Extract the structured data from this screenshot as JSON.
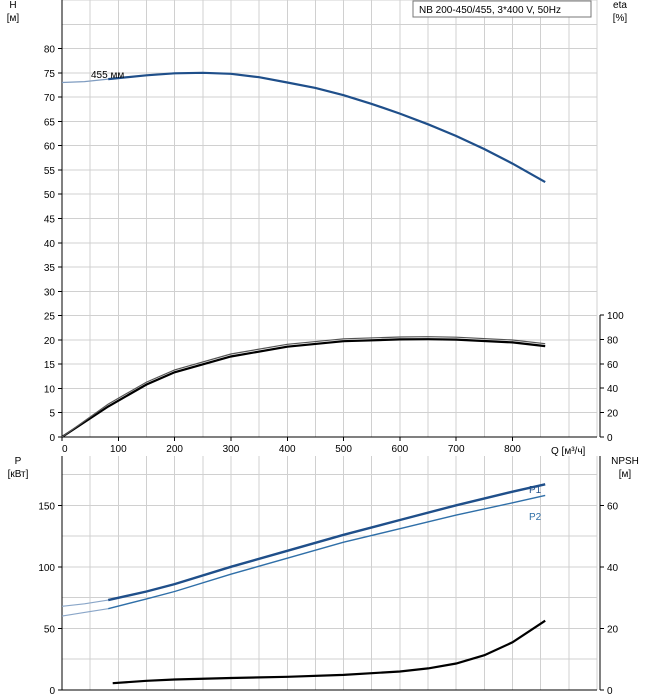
{
  "title_box": "NB 200-450/455, 3*400 V, 50Hz",
  "colors": {
    "head": "#1f4f8a",
    "p1": "#1f4f8a",
    "p2": "#2f6fa8",
    "eta": "#000000",
    "npsh": "#000000",
    "grid": "#d0d0d0"
  },
  "chart_data": [
    {
      "type": "line",
      "name": "head",
      "ylabel_line1": "H",
      "ylabel_line2": "[м]",
      "ylabel_right_line1": "eta",
      "ylabel_right_line2": "[%]",
      "xlabel": "Q [м³/ч]",
      "xlim": [
        0,
        950
      ],
      "ylim": [
        0,
        90
      ],
      "x_ticks": [
        0,
        100,
        200,
        300,
        400,
        500,
        600,
        700,
        800
      ],
      "y_ticks": [
        0,
        5,
        10,
        15,
        20,
        25,
        30,
        35,
        40,
        45,
        50,
        55,
        60,
        65,
        70,
        75,
        80
      ],
      "y2_lim": [
        0,
        100
      ],
      "y2_ticks": [
        0,
        20,
        40,
        60,
        80,
        100
      ],
      "annotation": "455 мм",
      "head_curve": {
        "x_ext": [
          0,
          40,
          82
        ],
        "y_ext": [
          73.0,
          73.2,
          73.7
        ],
        "x": [
          82,
          150,
          200,
          250,
          300,
          350,
          400,
          450,
          500,
          550,
          600,
          650,
          700,
          750,
          800,
          858
        ],
        "y": [
          73.7,
          74.5,
          74.9,
          75.0,
          74.8,
          74.1,
          73.0,
          71.9,
          70.4,
          68.6,
          66.6,
          64.4,
          62.0,
          59.3,
          56.3,
          52.5
        ]
      },
      "eta_curves": [
        {
          "x": [
            0,
            82,
            150,
            200,
            300,
            400,
            500,
            600,
            650,
            700,
            800,
            858
          ],
          "y": [
            0,
            25,
            43,
            53,
            66,
            74,
            78.5,
            80,
            80.2,
            79.8,
            77.5,
            74.5
          ]
        },
        {
          "x": [
            0,
            82,
            150,
            200,
            300,
            400,
            500,
            600,
            650,
            700,
            800,
            858
          ],
          "y": [
            0,
            27,
            45,
            55,
            68,
            76,
            80.5,
            82,
            82.2,
            81.8,
            79.5,
            76.5
          ]
        }
      ]
    },
    {
      "type": "line",
      "name": "power",
      "ylabel_line1": "P",
      "ylabel_line2": "[кВт]",
      "ylabel_right_line1": "NPSH",
      "ylabel_right_line2": "[м]",
      "xlim": [
        0,
        950
      ],
      "ylim": [
        0,
        190
      ],
      "y_ticks": [
        0,
        50,
        100,
        150
      ],
      "y2_lim": [
        0,
        76
      ],
      "y2_ticks": [
        0,
        20,
        40,
        60
      ],
      "series": [
        {
          "name": "P1",
          "x_ext": [
            0,
            40,
            82
          ],
          "y_ext": [
            68,
            70,
            73
          ],
          "x": [
            82,
            150,
            200,
            300,
            400,
            500,
            600,
            700,
            800,
            858
          ],
          "y": [
            73,
            80,
            86,
            100,
            113,
            126,
            138,
            150,
            161,
            167
          ]
        },
        {
          "name": "P2",
          "x_ext": [
            0,
            40,
            82
          ],
          "y_ext": [
            60,
            63,
            66
          ],
          "x": [
            82,
            150,
            200,
            300,
            400,
            500,
            600,
            700,
            800,
            858
          ],
          "y": [
            66,
            74,
            80,
            94,
            107,
            120,
            131,
            142,
            152,
            158
          ]
        }
      ],
      "npsh": {
        "x": [
          90,
          150,
          200,
          300,
          400,
          500,
          600,
          650,
          700,
          750,
          800,
          858
        ],
        "y": [
          2.2,
          3.0,
          3.4,
          3.9,
          4.3,
          4.9,
          6.0,
          7.0,
          8.6,
          11.3,
          15.5,
          22.5
        ]
      }
    }
  ]
}
